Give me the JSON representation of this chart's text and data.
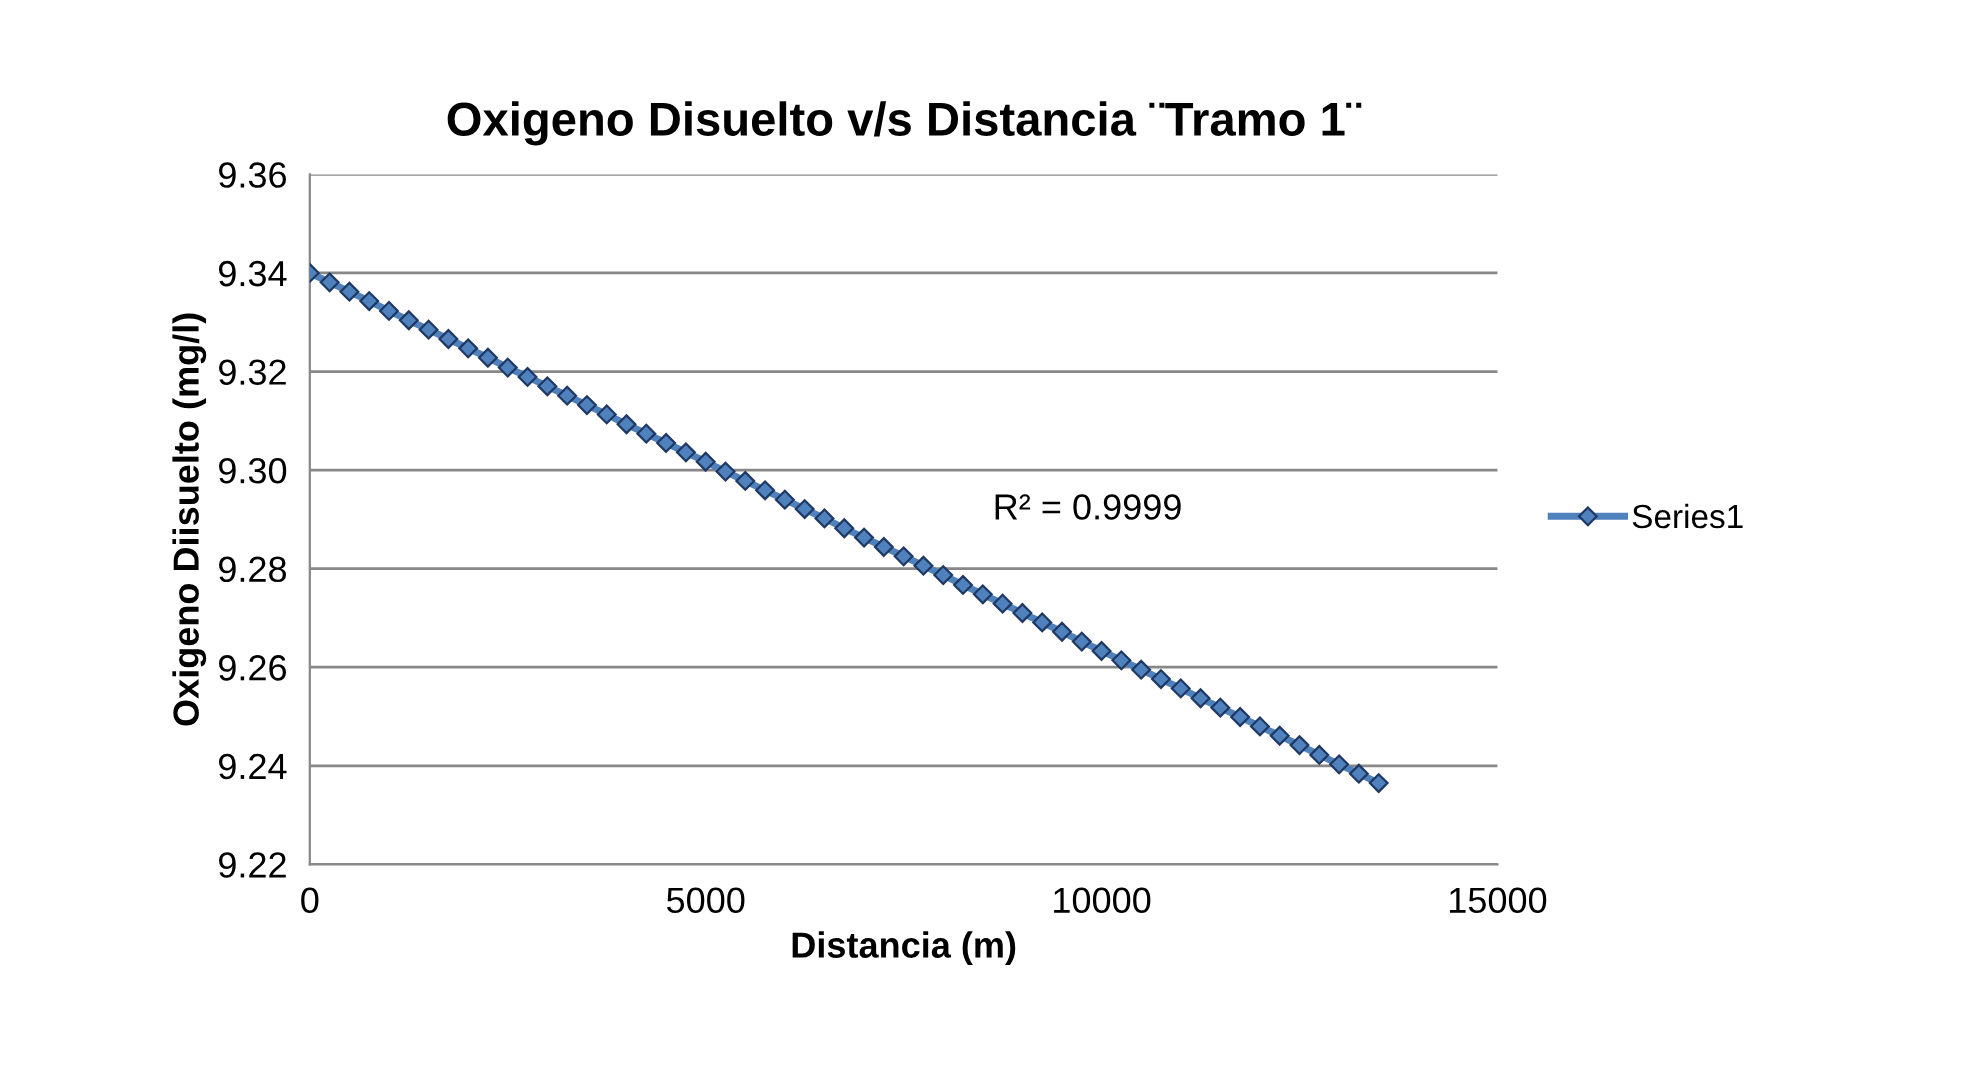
{
  "chart_data": {
    "type": "line",
    "title": "Oxigeno Disuelto v/s Distancia ¨Tramo 1¨",
    "xlabel": "Distancia (m)",
    "ylabel": "Oxigeno Diisuelto (mg/l)",
    "annotations": [
      "R² = 0.9999"
    ],
    "xlim": [
      0,
      15000
    ],
    "xticks": [
      0,
      5000,
      10000,
      15000
    ],
    "ylim": [
      9.22,
      9.36
    ],
    "yticks": [
      {
        "value": 9.22,
        "label": "9.22"
      },
      {
        "value": 9.24,
        "label": "9.24"
      },
      {
        "value": 9.26,
        "label": "9.26"
      },
      {
        "value": 9.28,
        "label": "9.28"
      },
      {
        "value": 9.3,
        "label": "9.30"
      },
      {
        "value": 9.32,
        "label": "9.32"
      },
      {
        "value": 9.34,
        "label": "9.34"
      },
      {
        "value": 9.36,
        "label": "9.36"
      }
    ],
    "grid": "y",
    "legend": "right",
    "marker": "diamond",
    "line_style": "solid",
    "series": [
      {
        "name": "Series1",
        "color": "#4f81bd",
        "x": [
          0,
          250,
          500,
          750,
          1000,
          1250,
          1500,
          1750,
          2000,
          2250,
          2500,
          2750,
          3000,
          3250,
          3500,
          3750,
          4000,
          4250,
          4500,
          4750,
          5000,
          5250,
          5500,
          5750,
          6000,
          6250,
          6500,
          6750,
          7000,
          7250,
          7500,
          7750,
          8000,
          8250,
          8500,
          8750,
          9000,
          9250,
          9500,
          9750,
          10000,
          10250,
          10500,
          10750,
          11000,
          11250,
          11500,
          11750,
          12000,
          12250,
          12500,
          12750,
          13000,
          13250,
          13500
        ],
        "values": [
          9.34,
          9.3381,
          9.3362,
          9.3343,
          9.3323,
          9.3304,
          9.3285,
          9.3266,
          9.3247,
          9.3228,
          9.3208,
          9.3189,
          9.317,
          9.3151,
          9.3132,
          9.3113,
          9.3093,
          9.3074,
          9.3055,
          9.3036,
          9.3017,
          9.2997,
          9.2978,
          9.2959,
          9.294,
          9.2921,
          9.2902,
          9.2882,
          9.2863,
          9.2844,
          9.2825,
          9.2806,
          9.2787,
          9.2767,
          9.2748,
          9.2729,
          9.271,
          9.2691,
          9.2672,
          9.2652,
          9.2633,
          9.2614,
          9.2595,
          9.2576,
          9.2557,
          9.2537,
          9.2518,
          9.2499,
          9.248,
          9.2461,
          9.2442,
          9.2422,
          9.2403,
          9.2384,
          9.2365
        ]
      }
    ]
  }
}
